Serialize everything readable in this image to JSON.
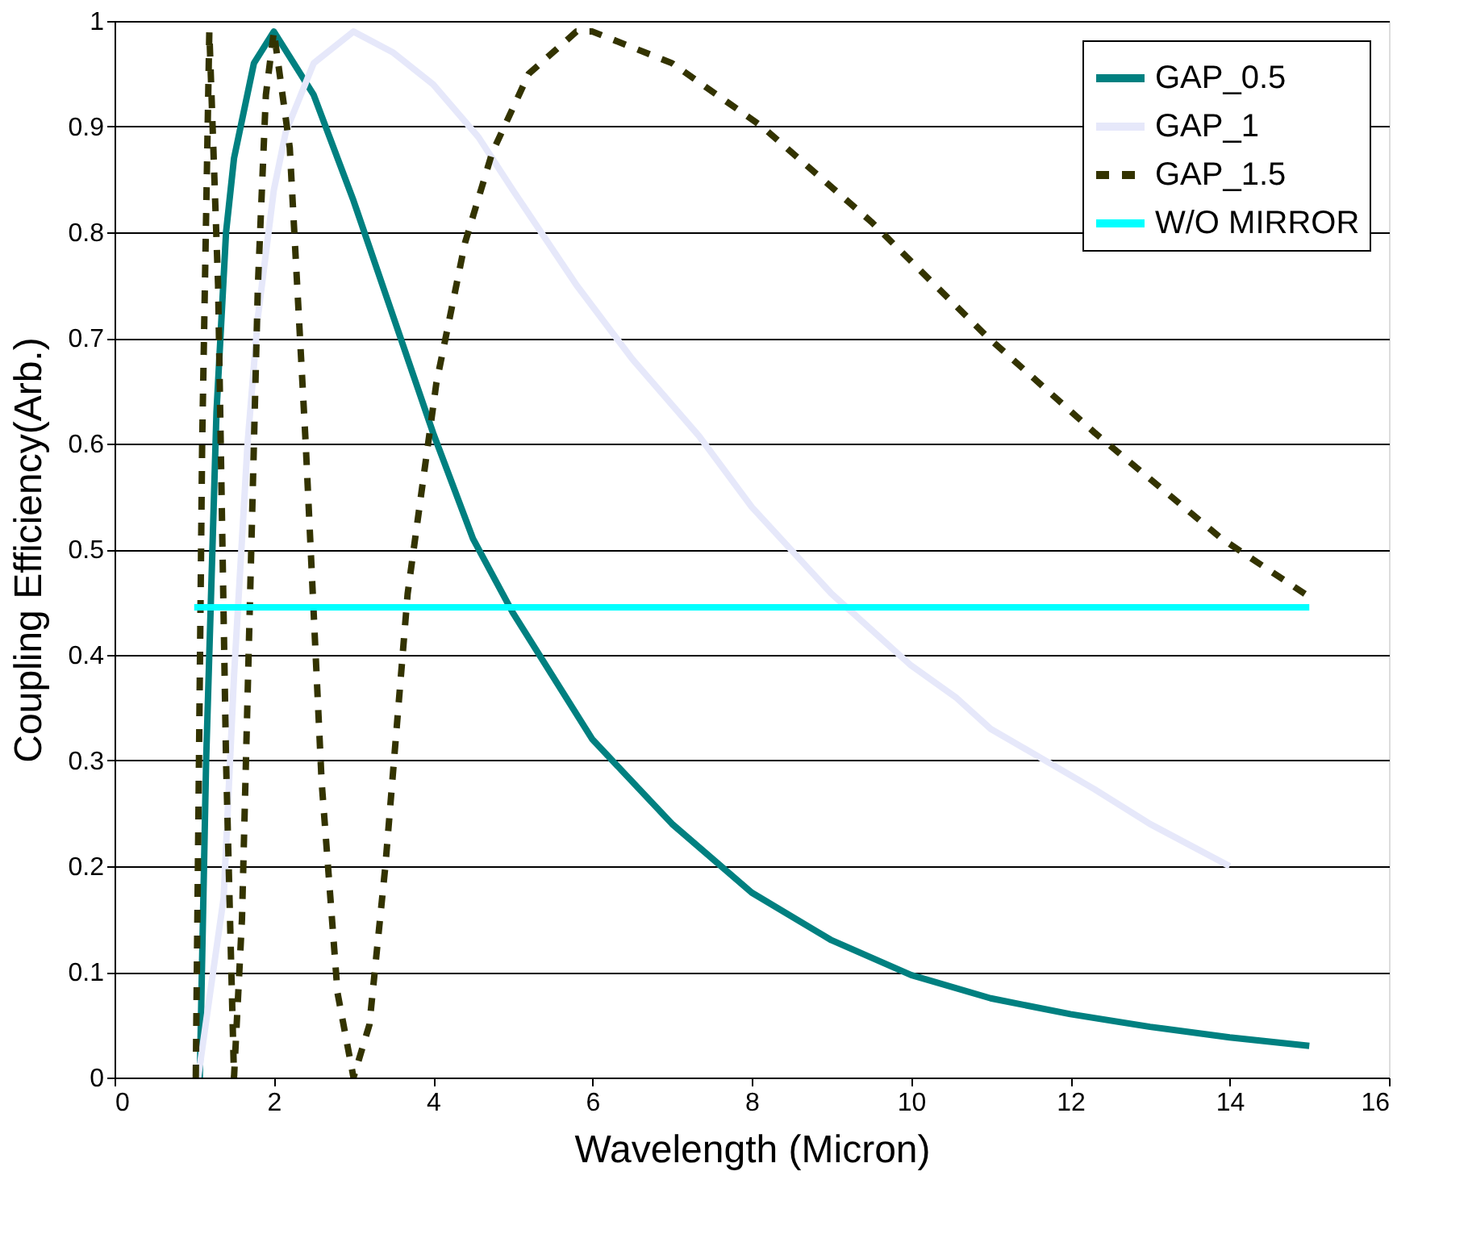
{
  "chart_data": {
    "type": "line",
    "xlabel": "Wavelength (Micron)",
    "ylabel": "Coupling Efficiency(Arb.)",
    "xlim": [
      0,
      16
    ],
    "xticks": [
      0,
      2,
      4,
      6,
      8,
      10,
      12,
      14,
      16
    ],
    "ylim": [
      0,
      1
    ],
    "yticks": [
      0,
      0.1,
      0.2,
      0.3,
      0.4,
      0.5,
      0.6,
      0.7,
      0.8,
      0.9,
      1
    ],
    "grid": "y",
    "legend": "top right",
    "marker": "none",
    "series": [
      {
        "name": "GAP_0.5",
        "color": "#008080",
        "line_style": "solid",
        "x": [
          1.07,
          1.15,
          1.28,
          1.4,
          1.5,
          1.75,
          2,
          2.5,
          3,
          3.5,
          4,
          4.5,
          5,
          6,
          7,
          8,
          9,
          10,
          11,
          12,
          13,
          14,
          15
        ],
        "values": [
          0,
          0.3,
          0.63,
          0.8,
          0.87,
          0.96,
          0.99,
          0.93,
          0.83,
          0.72,
          0.61,
          0.51,
          0.44,
          0.32,
          0.24,
          0.175,
          0.13,
          0.097,
          0.075,
          0.06,
          0.048,
          0.038,
          0.03
        ]
      },
      {
        "name": "GAP_1",
        "color": "#e6e8fa",
        "line_style": "solid",
        "x": [
          1.05,
          1.2,
          1.37,
          1.5,
          1.67,
          1.8,
          2,
          2.15,
          2.5,
          3,
          3.5,
          4,
          4.57,
          5,
          5.8,
          6.5,
          7.34,
          8,
          9,
          10,
          10.56,
          11,
          12.3,
          13,
          14
        ],
        "values": [
          0,
          0.08,
          0.17,
          0.38,
          0.6,
          0.72,
          0.84,
          0.895,
          0.96,
          0.99,
          0.97,
          0.94,
          0.89,
          0.84,
          0.75,
          0.68,
          0.607,
          0.54,
          0.458,
          0.39,
          0.36,
          0.33,
          0.273,
          0.24,
          0.2
        ]
      },
      {
        "name": "GAP_1.5",
        "color": "#333300",
        "line_style": "dashed",
        "x": [
          1.02,
          1.1,
          1.19,
          1.3,
          1.4,
          1.5,
          1.6,
          1.7,
          1.8,
          1.9,
          2,
          2.2,
          2.4,
          2.6,
          2.8,
          3,
          3.2,
          3.4,
          3.68,
          4.04,
          4.4,
          4.74,
          5.2,
          5.8,
          6,
          7,
          8.13,
          9.5,
          10.93,
          12.31,
          13.9,
          15
        ],
        "values": [
          0,
          0.6,
          0.99,
          0.75,
          0.3,
          0,
          0.15,
          0.45,
          0.75,
          0.93,
          0.99,
          0.88,
          0.6,
          0.28,
          0.08,
          0,
          0.05,
          0.2,
          0.458,
          0.657,
          0.79,
          0.875,
          0.95,
          0.99,
          0.99,
          0.96,
          0.9,
          0.81,
          0.703,
          0.61,
          0.51,
          0.455
        ]
      },
      {
        "name": "W/O MIRROR",
        "color": "#00ffff",
        "line_style": "solid",
        "x": [
          1,
          15
        ],
        "values": [
          0.445,
          0.445
        ]
      }
    ]
  }
}
